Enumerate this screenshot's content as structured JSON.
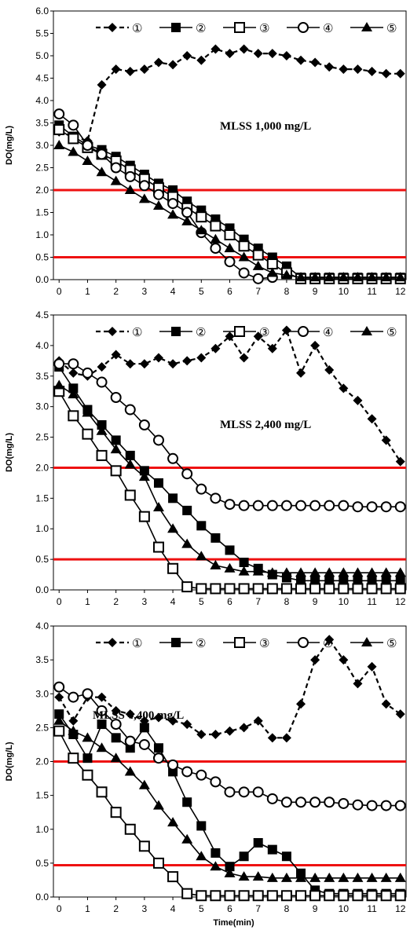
{
  "chart_data": [
    {
      "type": "line",
      "annotation": "MLSS 1,000 mg/L",
      "ylabel": "DO(mg/L)",
      "xlabel": "",
      "xlim": [
        -0.2,
        12.2
      ],
      "ylim": [
        0,
        6
      ],
      "xticks": [
        "0",
        "1",
        "2",
        "3",
        "4",
        "5",
        "6",
        "7",
        "8",
        "9",
        "10",
        "11",
        "12"
      ],
      "yticks": [
        "0.0",
        "0.5",
        "1.0",
        "1.5",
        "2.0",
        "2.5",
        "3.0",
        "3.5",
        "4.0",
        "4.5",
        "5.0",
        "5.5",
        "6.0"
      ],
      "reference_lines": [
        2.0,
        0.5
      ],
      "legend": [
        "①",
        "②",
        "③",
        "④",
        "⑤"
      ],
      "series": [
        {
          "name": "①",
          "marker": "diamond",
          "dash": true,
          "x": [
            0,
            0.5,
            1,
            1.5,
            2,
            2.5,
            3,
            3.5,
            4,
            4.5,
            5,
            5.5,
            6,
            6.5,
            7,
            7.5,
            8,
            8.5,
            9,
            9.5,
            10,
            10.5,
            11,
            11.5,
            12
          ],
          "y": [
            3.3,
            3.2,
            3.1,
            4.35,
            4.7,
            4.65,
            4.7,
            4.85,
            4.8,
            5.0,
            4.9,
            5.15,
            5.05,
            5.15,
            5.05,
            5.05,
            5.0,
            4.9,
            4.85,
            4.75,
            4.7,
            4.7,
            4.65,
            4.6,
            4.6
          ]
        },
        {
          "name": "②",
          "marker": "filled-square",
          "dash": false,
          "x": [
            0,
            0.5,
            1,
            1.5,
            2,
            2.5,
            3,
            3.5,
            4,
            4.5,
            5,
            5.5,
            6,
            6.5,
            7,
            7.5,
            8,
            8.5,
            9,
            9.5,
            10,
            10.5,
            11,
            11.5,
            12
          ],
          "y": [
            3.45,
            3.2,
            3.0,
            2.9,
            2.75,
            2.55,
            2.35,
            2.15,
            2.0,
            1.75,
            1.55,
            1.35,
            1.15,
            0.9,
            0.7,
            0.5,
            0.3,
            0.05,
            0.05,
            0.05,
            0.05,
            0.05,
            0.05,
            0.05,
            0.05
          ]
        },
        {
          "name": "③",
          "marker": "open-square",
          "dash": false,
          "x": [
            0,
            0.5,
            1,
            1.5,
            2,
            2.5,
            3,
            3.5,
            4,
            4.5,
            5,
            5.5,
            6,
            6.5,
            7,
            7.5,
            8,
            8.5,
            9,
            9.5,
            10,
            10.5,
            11,
            11.5,
            12
          ],
          "y": [
            3.35,
            3.15,
            2.95,
            2.8,
            2.65,
            2.45,
            2.25,
            2.05,
            1.85,
            1.6,
            1.4,
            1.2,
            1.0,
            0.75,
            0.55,
            0.35,
            0.15,
            0.02,
            0.02,
            0.02,
            0.02,
            0.02,
            0.02,
            0.02,
            0.02
          ]
        },
        {
          "name": "④",
          "marker": "open-circle",
          "dash": false,
          "x": [
            0,
            0.5,
            1,
            1.5,
            2,
            2.5,
            3,
            3.5,
            4,
            4.5,
            5,
            5.5,
            6,
            6.5,
            7,
            7.5
          ],
          "y": [
            3.7,
            3.45,
            3.0,
            2.8,
            2.5,
            2.3,
            2.1,
            1.9,
            1.7,
            1.5,
            1.05,
            0.7,
            0.4,
            0.15,
            0.02,
            0.05
          ]
        },
        {
          "name": "⑤",
          "marker": "filled-triangle",
          "dash": false,
          "x": [
            0,
            0.5,
            1,
            1.5,
            2,
            2.5,
            3,
            3.5,
            4,
            4.5,
            5,
            5.5,
            6,
            6.5,
            7,
            7.5,
            8,
            8.5,
            9,
            9.5,
            10,
            10.5,
            11,
            11.5,
            12
          ],
          "y": [
            3.0,
            2.85,
            2.65,
            2.4,
            2.2,
            2.0,
            1.8,
            1.65,
            1.45,
            1.3,
            1.1,
            0.9,
            0.7,
            0.5,
            0.3,
            0.15,
            0.1,
            0.05,
            0.05,
            0.05,
            0.05,
            0.05,
            0.05,
            0.05,
            0.05
          ]
        }
      ]
    },
    {
      "type": "line",
      "annotation": "MLSS 2,400 mg/L",
      "ylabel": "DO(mg/L)",
      "xlabel": "",
      "xlim": [
        -0.2,
        12.2
      ],
      "ylim": [
        0,
        4.5
      ],
      "xticks": [
        "0",
        "1",
        "2",
        "3",
        "4",
        "5",
        "6",
        "7",
        "8",
        "9",
        "10",
        "11",
        "12"
      ],
      "yticks": [
        "0.0",
        "0.5",
        "1.0",
        "1.5",
        "2.0",
        "2.5",
        "3.0",
        "3.5",
        "4.0",
        "4.5"
      ],
      "reference_lines": [
        2.0,
        0.5
      ],
      "legend": [
        "①",
        "②",
        "③",
        "④",
        "⑤"
      ],
      "series": [
        {
          "name": "①",
          "marker": "diamond",
          "dash": true,
          "x": [
            0,
            0.5,
            1,
            1.5,
            2,
            2.5,
            3,
            3.5,
            4,
            4.5,
            5,
            5.5,
            6,
            6.5,
            7,
            7.5,
            8,
            8.5,
            9,
            9.5,
            10,
            10.5,
            11,
            11.5,
            12
          ],
          "y": [
            3.75,
            3.55,
            3.5,
            3.65,
            3.85,
            3.7,
            3.7,
            3.8,
            3.7,
            3.75,
            3.8,
            3.95,
            4.15,
            3.8,
            4.15,
            3.95,
            4.25,
            3.55,
            4.0,
            3.6,
            3.3,
            3.1,
            2.8,
            2.45,
            2.1
          ]
        },
        {
          "name": "②",
          "marker": "filled-square",
          "dash": false,
          "x": [
            0,
            0.5,
            1,
            1.5,
            2,
            2.5,
            3,
            3.5,
            4,
            4.5,
            5,
            5.5,
            6,
            6.5,
            7,
            7.5,
            8,
            8.5,
            9,
            9.5,
            10,
            10.5,
            11,
            11.5,
            12
          ],
          "y": [
            3.65,
            3.3,
            2.95,
            2.7,
            2.45,
            2.2,
            1.95,
            1.75,
            1.5,
            1.3,
            1.05,
            0.85,
            0.65,
            0.45,
            0.35,
            0.25,
            0.2,
            0.15,
            0.15,
            0.15,
            0.15,
            0.15,
            0.15,
            0.15,
            0.15
          ]
        },
        {
          "name": "③",
          "marker": "open-square",
          "dash": false,
          "x": [
            0,
            0.5,
            1,
            1.5,
            2,
            2.5,
            3,
            3.5,
            4,
            4.5,
            5,
            5.5,
            6,
            6.5,
            7,
            7.5,
            8,
            8.5,
            9,
            9.5,
            10,
            10.5,
            11,
            11.5,
            12
          ],
          "y": [
            3.25,
            2.85,
            2.55,
            2.2,
            1.95,
            1.55,
            1.2,
            0.7,
            0.35,
            0.05,
            0.02,
            0.02,
            0.02,
            0.02,
            0.02,
            0.02,
            0.02,
            0.02,
            0.02,
            0.02,
            0.02,
            0.02,
            0.02,
            0.02,
            0.02
          ]
        },
        {
          "name": "④",
          "marker": "open-circle",
          "dash": false,
          "x": [
            0,
            0.5,
            1,
            1.5,
            2,
            2.5,
            3,
            3.5,
            4,
            4.5,
            5,
            5.5,
            6,
            6.5,
            7,
            7.5,
            8,
            8.5,
            9,
            9.5,
            10,
            10.5,
            11,
            11.5,
            12
          ],
          "y": [
            3.7,
            3.7,
            3.55,
            3.4,
            3.15,
            2.95,
            2.7,
            2.45,
            2.15,
            1.9,
            1.65,
            1.5,
            1.4,
            1.38,
            1.38,
            1.38,
            1.38,
            1.38,
            1.38,
            1.38,
            1.38,
            1.36,
            1.36,
            1.36,
            1.36
          ]
        },
        {
          "name": "⑤",
          "marker": "filled-triangle",
          "dash": false,
          "x": [
            0,
            0.5,
            1,
            1.5,
            2,
            2.5,
            3,
            3.5,
            4,
            4.5,
            5,
            5.5,
            6,
            6.5,
            7,
            7.5,
            8,
            8.5,
            9,
            9.5,
            10,
            10.5,
            11,
            11.5,
            12
          ],
          "y": [
            3.35,
            3.2,
            2.9,
            2.6,
            2.3,
            2.05,
            1.85,
            1.35,
            1.0,
            0.75,
            0.55,
            0.4,
            0.35,
            0.3,
            0.3,
            0.28,
            0.28,
            0.28,
            0.28,
            0.28,
            0.28,
            0.28,
            0.28,
            0.28,
            0.28
          ]
        }
      ]
    },
    {
      "type": "line",
      "annotation": "MLSS 4,400 mg/L",
      "ylabel": "DO(mg/L)",
      "xlabel": "Time(min)",
      "xlim": [
        -0.2,
        12.2
      ],
      "ylim": [
        0,
        4
      ],
      "xticks": [
        "0",
        "1",
        "2",
        "3",
        "4",
        "5",
        "6",
        "7",
        "8",
        "9",
        "10",
        "11",
        "12"
      ],
      "yticks": [
        "0.0",
        "0.5",
        "1.0",
        "1.5",
        "2.0",
        "2.5",
        "3.0",
        "3.5",
        "4.0"
      ],
      "reference_lines": [
        2.0,
        0.47
      ],
      "legend": [
        "①",
        "②",
        "③",
        "④",
        "⑤"
      ],
      "series": [
        {
          "name": "①",
          "marker": "diamond",
          "dash": true,
          "x": [
            0,
            0.5,
            1,
            1.5,
            2,
            2.5,
            3,
            3.5,
            4,
            4.5,
            5,
            5.5,
            6,
            6.5,
            7,
            7.5,
            8,
            8.5,
            9,
            9.5,
            10,
            10.5,
            11,
            11.5,
            12
          ],
          "y": [
            2.95,
            2.6,
            2.95,
            2.95,
            2.75,
            2.7,
            2.6,
            2.65,
            2.6,
            2.55,
            2.4,
            2.4,
            2.45,
            2.5,
            2.6,
            2.35,
            2.35,
            2.85,
            3.5,
            3.8,
            3.5,
            3.15,
            3.4,
            2.85,
            2.7
          ]
        },
        {
          "name": "②",
          "marker": "filled-square",
          "dash": false,
          "x": [
            0,
            0.5,
            1,
            1.5,
            2,
            2.5,
            3,
            3.5,
            4,
            4.5,
            5,
            5.5,
            6,
            6.5,
            7,
            7.5,
            8,
            8.5,
            9,
            9.5,
            10,
            10.5,
            11,
            11.5,
            12
          ],
          "y": [
            2.7,
            2.4,
            2.05,
            2.55,
            2.35,
            2.2,
            2.5,
            2.2,
            1.85,
            1.4,
            1.05,
            0.65,
            0.45,
            0.6,
            0.8,
            0.7,
            0.6,
            0.35,
            0.1,
            0.05,
            0.05,
            0.05,
            0.05,
            0.05,
            0.05
          ]
        },
        {
          "name": "③",
          "marker": "open-square",
          "dash": false,
          "x": [
            0,
            0.5,
            1,
            1.5,
            2,
            2.5,
            3,
            3.5,
            4,
            4.5,
            5,
            5.5,
            6,
            6.5,
            7,
            7.5,
            8,
            8.5,
            9,
            9.5,
            10,
            10.5,
            11,
            11.5,
            12
          ],
          "y": [
            2.45,
            2.05,
            1.8,
            1.55,
            1.25,
            1.0,
            0.75,
            0.5,
            0.3,
            0.05,
            0.02,
            0.02,
            0.02,
            0.02,
            0.02,
            0.02,
            0.02,
            0.02,
            0.02,
            0.02,
            0.02,
            0.02,
            0.02,
            0.02,
            0.02
          ]
        },
        {
          "name": "④",
          "marker": "open-circle",
          "dash": false,
          "x": [
            0,
            0.5,
            1,
            1.5,
            2,
            2.5,
            3,
            3.5,
            4,
            4.5,
            5,
            5.5,
            6,
            6.5,
            7,
            7.5,
            8,
            8.5,
            9,
            9.5,
            10,
            10.5,
            11,
            11.5,
            12
          ],
          "y": [
            3.1,
            2.95,
            3.0,
            2.75,
            2.55,
            2.3,
            2.25,
            2.05,
            1.95,
            1.85,
            1.8,
            1.7,
            1.55,
            1.55,
            1.55,
            1.45,
            1.4,
            1.4,
            1.4,
            1.4,
            1.38,
            1.36,
            1.35,
            1.35,
            1.35
          ]
        },
        {
          "name": "⑤",
          "marker": "filled-triangle",
          "dash": false,
          "x": [
            0,
            0.5,
            1,
            1.5,
            2,
            2.5,
            3,
            3.5,
            4,
            4.5,
            5,
            5.5,
            6,
            6.5,
            7,
            7.5,
            8,
            8.5,
            9,
            9.5,
            10,
            10.5,
            11,
            11.5,
            12
          ],
          "y": [
            2.6,
            2.45,
            2.35,
            2.2,
            2.05,
            1.85,
            1.65,
            1.35,
            1.1,
            0.85,
            0.6,
            0.45,
            0.35,
            0.3,
            0.3,
            0.28,
            0.28,
            0.28,
            0.28,
            0.28,
            0.28,
            0.28,
            0.28,
            0.28,
            0.28
          ]
        }
      ]
    }
  ]
}
